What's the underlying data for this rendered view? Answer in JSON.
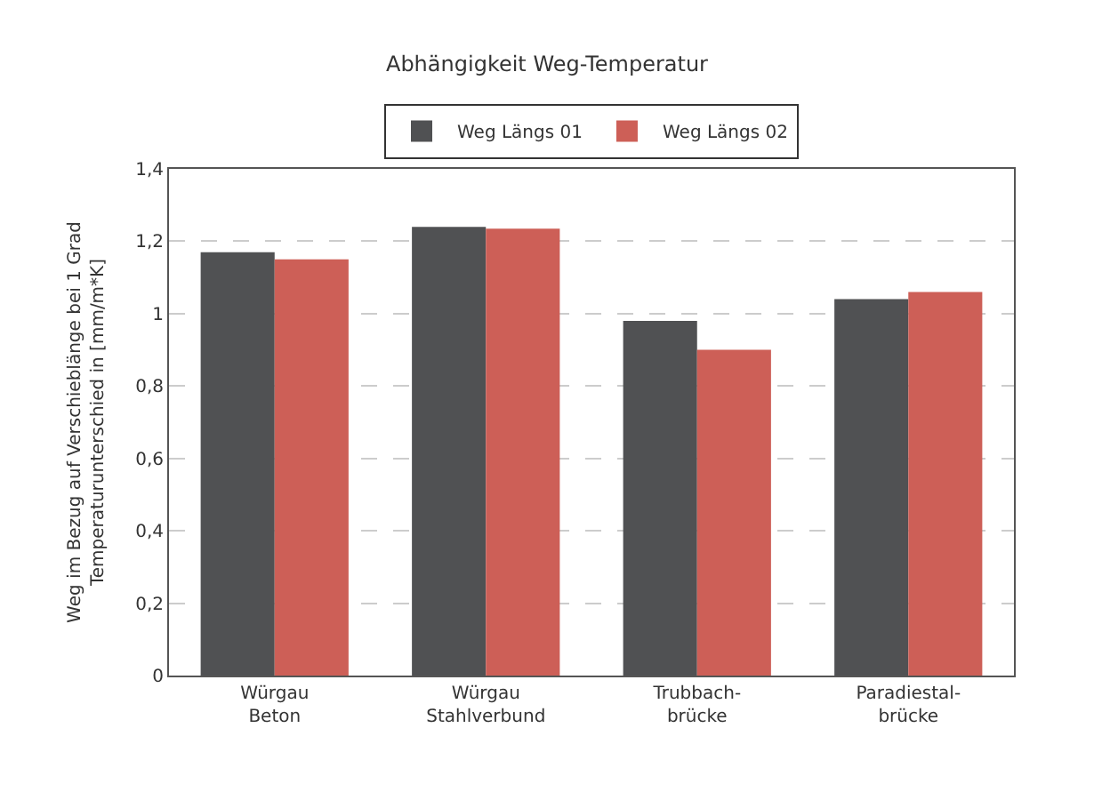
{
  "chart_data": {
    "type": "bar",
    "title": "Abhängigkeit Weg-Temperatur",
    "ylabel": "Weg im Bezug auf Verschieblänge bei 1 Grad\nTemperaturunterschied in [mm/m*K]",
    "categories": [
      "Würgau\nBeton",
      "Würgau\nStahlverbund",
      "Trubbach-\nbrücke",
      "Paradiestal-\nbrücke"
    ],
    "series": [
      {
        "name": "Weg Längs 01",
        "color": "#505153",
        "values": [
          1.17,
          1.24,
          0.98,
          1.04
        ]
      },
      {
        "name": "Weg Längs 02",
        "color": "#cd5f57",
        "values": [
          1.15,
          1.235,
          0.9,
          1.06
        ]
      }
    ],
    "ylim": [
      0,
      1.4
    ],
    "yticks": [
      0,
      {
        "value": 0.2,
        "label": "0,2"
      },
      {
        "value": 0.4,
        "label": "0,4"
      },
      {
        "value": 0.6,
        "label": "0,6"
      },
      {
        "value": 0.8,
        "label": "0,8"
      },
      1,
      {
        "value": 1.2,
        "label": "1,2"
      },
      {
        "value": 1.4,
        "label": "1,4"
      }
    ],
    "grid": "y",
    "legend": "top"
  }
}
